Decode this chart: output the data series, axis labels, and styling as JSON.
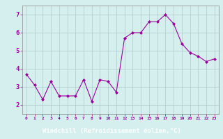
{
  "x": [
    0,
    1,
    2,
    3,
    4,
    5,
    6,
    7,
    8,
    9,
    10,
    11,
    12,
    13,
    14,
    15,
    16,
    17,
    18,
    19,
    20,
    21,
    22,
    23
  ],
  "y": [
    3.7,
    3.1,
    2.3,
    3.3,
    2.5,
    2.5,
    2.5,
    3.4,
    2.2,
    3.4,
    3.3,
    2.7,
    5.7,
    6.0,
    6.0,
    6.6,
    6.6,
    7.0,
    6.5,
    5.4,
    4.9,
    4.7,
    4.4,
    4.55
  ],
  "line_color": "#990099",
  "marker": "D",
  "marker_size": 2,
  "bg_color": "#d5efee",
  "grid_color": "#b0c8c8",
  "xlabel": "Windchill (Refroidissement éolien,°C)",
  "xlabel_color": "#ffffff",
  "xlabel_bg": "#990099",
  "ylabel_ticks": [
    2,
    3,
    4,
    5,
    6,
    7
  ],
  "xtick_labels": [
    "0",
    "1",
    "2",
    "3",
    "4",
    "5",
    "6",
    "7",
    "8",
    "9",
    "10",
    "11",
    "12",
    "13",
    "14",
    "15",
    "16",
    "17",
    "18",
    "19",
    "20",
    "21",
    "22",
    "23"
  ],
  "ylim": [
    1.5,
    7.5
  ],
  "xlim": [
    -0.5,
    23.5
  ],
  "tick_color": "#990099",
  "font_color": "#990099",
  "spine_color": "#888888"
}
